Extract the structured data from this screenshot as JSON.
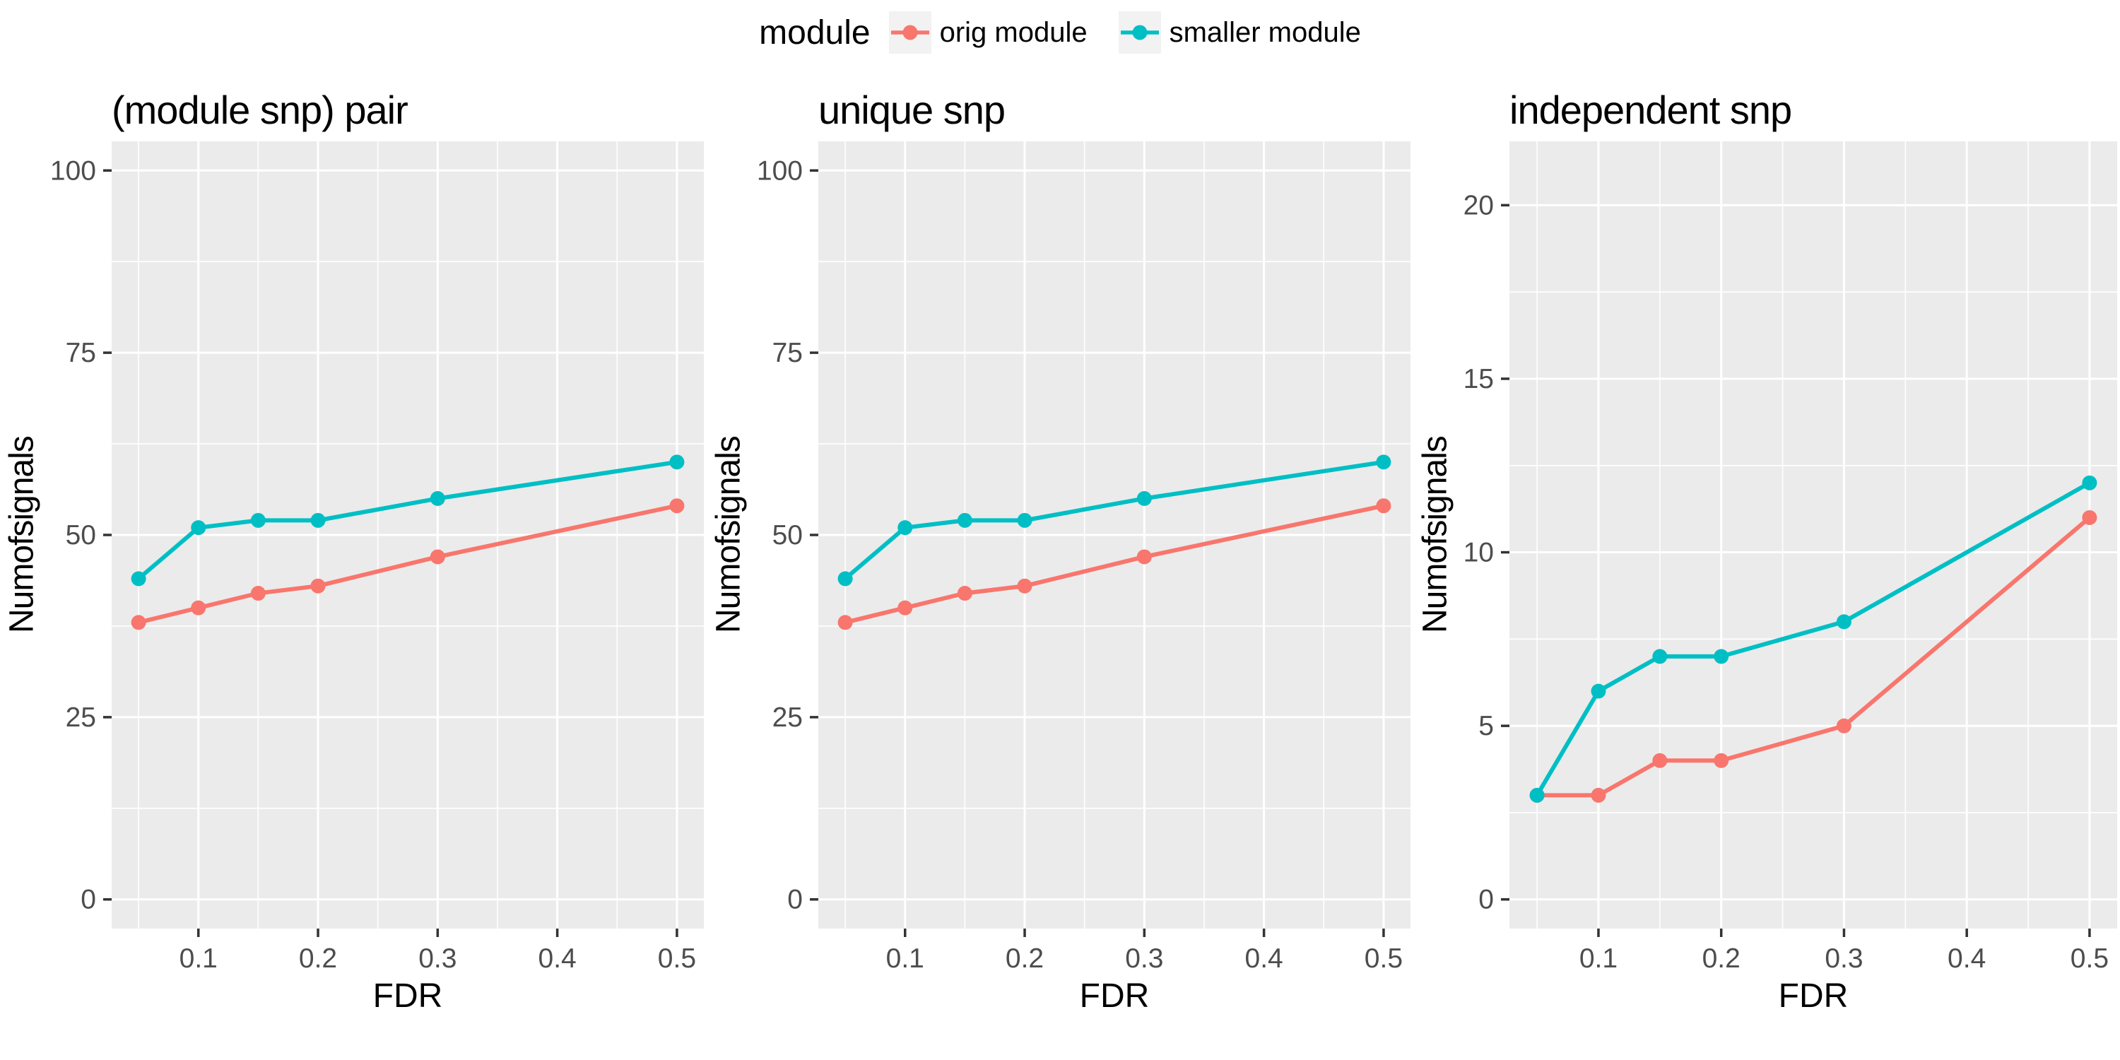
{
  "legend": {
    "title": "module",
    "items": [
      {
        "label": "orig module",
        "color": "#F8766D"
      },
      {
        "label": "smaller module",
        "color": "#00BFC4"
      }
    ]
  },
  "chart_data": [
    {
      "type": "line",
      "title": "(module snp) pair",
      "xlabel": "FDR",
      "ylabel": "Numofsignals",
      "x": [
        0.05,
        0.1,
        0.15,
        0.2,
        0.3,
        0.5
      ],
      "series": [
        {
          "name": "orig module",
          "color": "#F8766D",
          "values": [
            38,
            40,
            42,
            43,
            47,
            54
          ]
        },
        {
          "name": "smaller module",
          "color": "#00BFC4",
          "values": [
            44,
            51,
            52,
            52,
            55,
            60
          ]
        }
      ],
      "xlim": [
        0.05,
        0.5
      ],
      "ylim": [
        0,
        100
      ],
      "xticks": [
        0.1,
        0.2,
        0.3,
        0.4,
        0.5
      ],
      "yticks": [
        0,
        25,
        50,
        75,
        100
      ],
      "grid": "major+minor",
      "legend_position": "top"
    },
    {
      "type": "line",
      "title": "unique snp",
      "xlabel": "FDR",
      "ylabel": "Numofsignals",
      "x": [
        0.05,
        0.1,
        0.15,
        0.2,
        0.3,
        0.5
      ],
      "series": [
        {
          "name": "orig module",
          "color": "#F8766D",
          "values": [
            38,
            40,
            42,
            43,
            47,
            54
          ]
        },
        {
          "name": "smaller module",
          "color": "#00BFC4",
          "values": [
            44,
            51,
            52,
            52,
            55,
            60
          ]
        }
      ],
      "xlim": [
        0.05,
        0.5
      ],
      "ylim": [
        0,
        100
      ],
      "xticks": [
        0.1,
        0.2,
        0.3,
        0.4,
        0.5
      ],
      "yticks": [
        0,
        25,
        50,
        75,
        100
      ],
      "grid": "major+minor",
      "legend_position": "top"
    },
    {
      "type": "line",
      "title": "independent snp",
      "xlabel": "FDR",
      "ylabel": "Numofsignals",
      "x": [
        0.05,
        0.1,
        0.15,
        0.2,
        0.3,
        0.5
      ],
      "series": [
        {
          "name": "orig module",
          "color": "#F8766D",
          "values": [
            3,
            3,
            4,
            4,
            5,
            11
          ]
        },
        {
          "name": "smaller module",
          "color": "#00BFC4",
          "values": [
            3,
            6,
            7,
            7,
            8,
            12
          ]
        }
      ],
      "xlim": [
        0.05,
        0.5
      ],
      "ylim": [
        0,
        21
      ],
      "xticks": [
        0.1,
        0.2,
        0.3,
        0.4,
        0.5
      ],
      "yticks": [
        0,
        5,
        10,
        15,
        20
      ],
      "grid": "major+minor",
      "legend_position": "top"
    }
  ],
  "style": {
    "panel_bg": "#EBEBEB",
    "grid_color": "#FFFFFF",
    "tick_mark_color": "#333333",
    "tick_label_color": "#4D4D4D",
    "text_color": "#000000",
    "legend_key_bg": "#F2F2F2"
  }
}
